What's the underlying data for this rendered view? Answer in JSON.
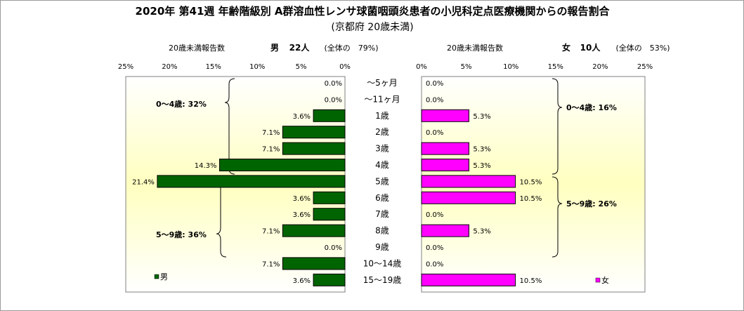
{
  "title": "2020年 第41週 年齢階級別 A群溶血性レンサ球菌咽頭炎患者の小児科定点医療機関からの報告割合",
  "subtitle": "(京都府 20歳未満)",
  "male_header": {
    "label": "20歳未満報告数",
    "name": "男",
    "count": "22人",
    "share": "(全体の　79%)"
  },
  "female_header": {
    "label": "20歳未満報告数",
    "name": "女",
    "count": "10人",
    "share": "(全体の　53%)"
  },
  "colors": {
    "male": "#006400",
    "female": "#ff00ff"
  },
  "chart_data": [
    {
      "type": "bar",
      "orientation": "horizontal",
      "direction": "right-to-left",
      "name": "男",
      "categories": [
        "〜5ヶ月",
        "〜11ヶ月",
        "1歳",
        "2歳",
        "3歳",
        "4歳",
        "5歳",
        "6歳",
        "7歳",
        "8歳",
        "9歳",
        "10〜14歳",
        "15〜19歳"
      ],
      "values": [
        0.0,
        0.0,
        3.6,
        7.1,
        7.1,
        14.3,
        21.4,
        3.6,
        3.6,
        7.1,
        0.0,
        7.1,
        3.6
      ],
      "data_labels": [
        "0.0%",
        "0.0%",
        "3.6%",
        "7.1%",
        "7.1%",
        "14.3%",
        "21.4%",
        "3.6%",
        "3.6%",
        "7.1%",
        "0.0%",
        "7.1%",
        "3.6%"
      ],
      "xlim": [
        0,
        25
      ],
      "ticks": [
        "25%",
        "20%",
        "15%",
        "10%",
        "5%",
        "0%"
      ],
      "groups": [
        {
          "label": "0〜4歳: 32%"
        },
        {
          "label": "5〜9歳: 36%"
        }
      ],
      "legend": "男",
      "grid": false
    },
    {
      "type": "bar",
      "orientation": "horizontal",
      "direction": "left-to-right",
      "name": "女",
      "categories": [
        "〜5ヶ月",
        "〜11ヶ月",
        "1歳",
        "2歳",
        "3歳",
        "4歳",
        "5歳",
        "6歳",
        "7歳",
        "8歳",
        "9歳",
        "10〜14歳",
        "15〜19歳"
      ],
      "values": [
        0.0,
        0.0,
        5.3,
        0.0,
        5.3,
        5.3,
        10.5,
        10.5,
        0.0,
        5.3,
        0.0,
        0.0,
        10.5
      ],
      "data_labels": [
        "0.0%",
        "0.0%",
        "5.3%",
        "0.0%",
        "5.3%",
        "5.3%",
        "10.5%",
        "10.5%",
        "0.0%",
        "5.3%",
        "0.0%",
        "0.0%",
        "10.5%"
      ],
      "xlim": [
        0,
        25
      ],
      "ticks": [
        "0%",
        "5%",
        "10%",
        "15%",
        "20%",
        "25%"
      ],
      "groups": [
        {
          "label": "0〜4歳: 16%"
        },
        {
          "label": "5〜9歳: 26%"
        }
      ],
      "legend": "女",
      "grid": false
    }
  ]
}
